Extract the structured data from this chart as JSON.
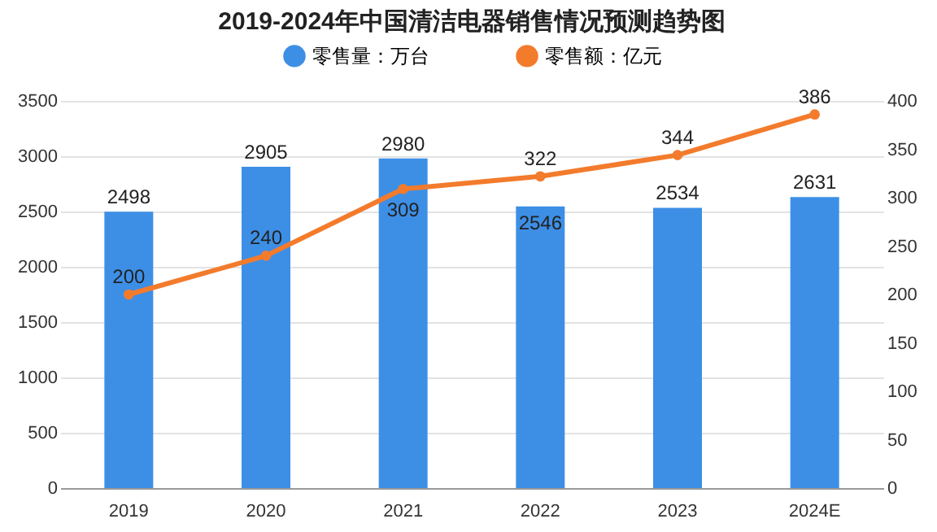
{
  "chart_data": {
    "type": "bar",
    "title": "2019-2024年中国清洁电器销售情况预测趋势图",
    "categories": [
      "2019",
      "2020",
      "2021",
      "2022",
      "2023",
      "2024E"
    ],
    "series": [
      {
        "name": "零售量：万台",
        "color": "#3d8fe6",
        "values": [
          2498,
          2905,
          2980,
          2546,
          2534,
          2631
        ]
      },
      {
        "name": "零售额：亿元",
        "type": "line",
        "axis": "y2",
        "color": "#f37b2c",
        "values": [
          200,
          240,
          309,
          322,
          344,
          386
        ]
      }
    ],
    "ylim": [
      0,
      3500
    ],
    "yticks": [
      0,
      500,
      1000,
      1500,
      2000,
      2500,
      3000,
      3500
    ],
    "y2lim": [
      0,
      400
    ],
    "y2ticks": [
      0,
      50,
      100,
      150,
      200,
      250,
      300,
      350,
      400
    ],
    "grid": "y",
    "legend": "top",
    "data_labels": true,
    "marker": "circle"
  }
}
